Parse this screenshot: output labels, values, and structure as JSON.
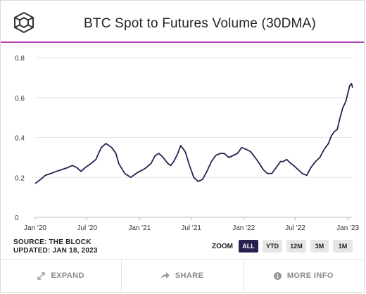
{
  "chart_data": {
    "type": "line",
    "title": "BTC Spot to Futures Volume (30DMA)",
    "xlabel": "",
    "ylabel": "",
    "x_ticks": [
      "Jan '20",
      "Jul '20",
      "Jan '21",
      "Jul '21",
      "Jan '22",
      "Jul '22",
      "Jan '23"
    ],
    "y_ticks": [
      "0",
      "0.2",
      "0.4",
      "0.6",
      "0.8"
    ],
    "ylim": [
      0,
      0.8
    ],
    "xlim": [
      "2020-01-01",
      "2023-01-18"
    ],
    "grid": "horizontal",
    "line_color": "#2a2050",
    "series": [
      {
        "x": [
          "2020-01-01",
          "2020-01-20",
          "2020-02-05",
          "2020-02-25",
          "2020-03-15",
          "2020-04-05",
          "2020-04-25",
          "2020-05-10",
          "2020-05-25",
          "2020-06-10",
          "2020-06-25",
          "2020-07-15",
          "2020-08-01",
          "2020-08-10",
          "2020-08-20",
          "2020-09-05",
          "2020-09-25",
          "2020-10-10",
          "2020-10-20",
          "2020-11-10",
          "2020-12-01",
          "2020-12-20",
          "2021-01-01",
          "2021-01-15",
          "2021-01-25",
          "2021-02-10",
          "2021-02-25",
          "2021-03-10",
          "2021-03-25",
          "2021-04-10",
          "2021-04-20",
          "2021-05-01",
          "2021-05-15",
          "2021-05-25",
          "2021-06-10",
          "2021-06-25",
          "2021-07-10",
          "2021-07-25",
          "2021-08-10",
          "2021-08-25",
          "2021-09-10",
          "2021-09-25",
          "2021-10-10",
          "2021-10-25",
          "2021-11-10",
          "2021-11-25",
          "2021-12-10",
          "2021-12-25",
          "2022-01-10",
          "2022-01-25",
          "2022-02-10",
          "2022-02-25",
          "2022-03-10",
          "2022-03-25",
          "2022-04-10",
          "2022-04-25",
          "2022-05-10",
          "2022-05-20",
          "2022-06-01",
          "2022-06-15",
          "2022-06-25",
          "2022-07-10",
          "2022-07-25",
          "2022-08-10",
          "2022-08-25",
          "2022-09-10",
          "2022-09-25",
          "2022-10-10",
          "2022-10-25",
          "2022-11-05",
          "2022-11-15",
          "2022-11-25",
          "2022-12-05",
          "2022-12-15",
          "2022-12-25",
          "2023-01-01",
          "2023-01-08",
          "2023-01-14",
          "2023-01-18"
        ],
        "values": [
          0.17,
          0.19,
          0.21,
          0.22,
          0.23,
          0.24,
          0.25,
          0.26,
          0.25,
          0.23,
          0.25,
          0.27,
          0.29,
          0.32,
          0.35,
          0.37,
          0.35,
          0.32,
          0.27,
          0.22,
          0.2,
          0.22,
          0.23,
          0.24,
          0.25,
          0.27,
          0.31,
          0.32,
          0.3,
          0.27,
          0.26,
          0.28,
          0.32,
          0.36,
          0.33,
          0.26,
          0.2,
          0.18,
          0.19,
          0.23,
          0.28,
          0.31,
          0.32,
          0.32,
          0.3,
          0.31,
          0.32,
          0.35,
          0.34,
          0.33,
          0.3,
          0.27,
          0.24,
          0.22,
          0.22,
          0.25,
          0.28,
          0.28,
          0.29,
          0.27,
          0.26,
          0.24,
          0.22,
          0.21,
          0.25,
          0.28,
          0.3,
          0.34,
          0.37,
          0.41,
          0.43,
          0.44,
          0.5,
          0.55,
          0.58,
          0.62,
          0.66,
          0.67,
          0.65
        ]
      }
    ]
  },
  "source": "SOURCE: THE BLOCK",
  "updated": "UPDATED: JAN 18, 2023",
  "zoom": {
    "label": "ZOOM",
    "buttons": [
      "ALL",
      "YTD",
      "12M",
      "3M",
      "1M"
    ],
    "active": "ALL"
  },
  "footer": {
    "expand": "EXPAND",
    "share": "SHARE",
    "more_info": "MORE INFO"
  },
  "icons": {
    "logo": "the-block-cube-logo",
    "expand": "expand-arrows-icon",
    "share": "share-arrow-icon",
    "info": "info-circle-icon"
  }
}
